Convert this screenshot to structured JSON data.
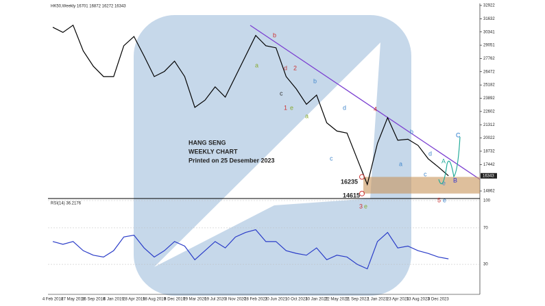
{
  "header": "HK50,Weekly 16701 16872 16272 16343",
  "chart_data": [
    {
      "type": "line",
      "categories": [
        "4 Feb 2018",
        null,
        "27 May 2018",
        null,
        "16 Sep 2018",
        null,
        "6 Jan 2019",
        null,
        "28 Apr 2019",
        null,
        "18 Aug 2019",
        null,
        "8 Dec 2019",
        null,
        "29 Mar 2020",
        null,
        "19 Jul 2020",
        null,
        "8 Nov 2020",
        null,
        "28 Feb 2021",
        null,
        "20 Jun 2021",
        null,
        "10 Oct 2021",
        null,
        "30 Jan 2022",
        null,
        "22 May 2022",
        null,
        "11 Sep 2022",
        null,
        "1 Jan 2023",
        null,
        "23 Apr 2023",
        null,
        "13 Aug 2023",
        null,
        "3 Dec 2023",
        null
      ],
      "series": [
        {
          "name": "HK50",
          "color": "#000000",
          "values": [
            30800,
            30300,
            31000,
            28500,
            27000,
            26000,
            26000,
            29000,
            29900,
            28000,
            26000,
            26500,
            27500,
            26000,
            23000,
            23700,
            25000,
            24000,
            26000,
            28000,
            30000,
            29000,
            28800,
            26000,
            24800,
            23300,
            24200,
            21500,
            20700,
            20500,
            18000,
            15500,
            19500,
            22000,
            19800,
            19900,
            19300,
            18000,
            17200,
            16343
          ]
        }
      ],
      "ylim": [
        14130,
        33120
      ],
      "yticks": [
        32922,
        31632,
        30341,
        29051,
        27762,
        26472,
        25182,
        23892,
        22602,
        21312,
        20022,
        18732,
        17442,
        14862
      ],
      "last_price": 16343,
      "support_zone": [
        16235,
        14615
      ],
      "annotations": [
        "HANG SENG",
        "WEEKLY CHART",
        "Printed on 25 Desember 2023",
        "16235",
        "14615"
      ],
      "waves": [
        "a",
        "b",
        "c",
        "d",
        "2",
        "1",
        "e",
        "a",
        "b",
        "c",
        "d",
        "4",
        "a",
        "b",
        "c",
        "d",
        "e",
        "3",
        "e",
        "A",
        "B",
        "C",
        "5",
        "e"
      ]
    },
    {
      "type": "line",
      "title": "RSI(14) 36.2176",
      "series": [
        {
          "name": "RSI",
          "color": "#2a3cc8",
          "values": [
            55,
            52,
            55,
            45,
            40,
            38,
            45,
            60,
            62,
            48,
            38,
            45,
            55,
            50,
            35,
            45,
            55,
            48,
            60,
            65,
            68,
            55,
            55,
            45,
            42,
            40,
            48,
            35,
            40,
            38,
            30,
            25,
            55,
            65,
            48,
            50,
            45,
            42,
            38,
            36
          ]
        }
      ],
      "ylim": [
        0,
        100
      ],
      "yticks": [
        100,
        70,
        30
      ]
    }
  ]
}
